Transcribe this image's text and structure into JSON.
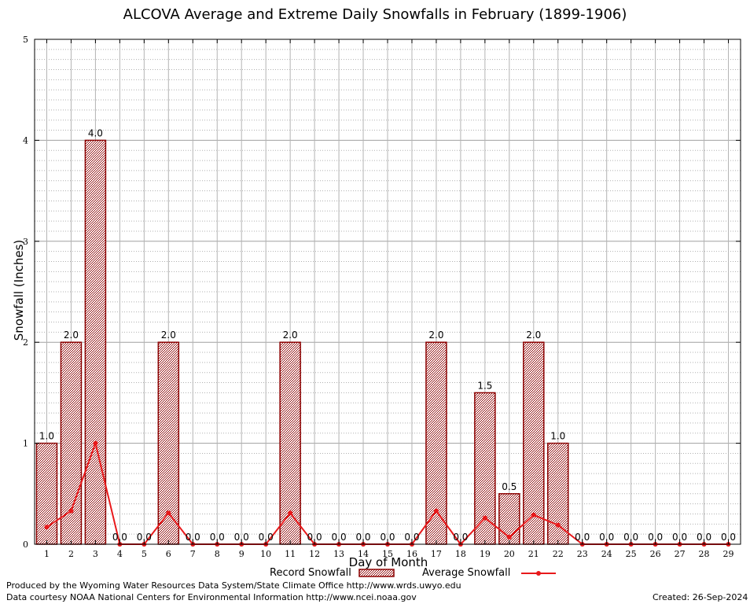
{
  "chart_data": {
    "type": "bar",
    "title": "ALCOVA Average and Extreme Daily Snowfalls in February (1899-1906)",
    "xlabel": "Day of Month",
    "ylabel": "Snowfall (Inches)",
    "ylim": [
      0,
      5
    ],
    "yticks": [
      "0",
      "1",
      "2",
      "3",
      "4",
      "5"
    ],
    "grid": true,
    "categories": [
      "1",
      "2",
      "3",
      "4",
      "5",
      "6",
      "7",
      "8",
      "9",
      "10",
      "11",
      "12",
      "13",
      "14",
      "15",
      "16",
      "17",
      "18",
      "19",
      "20",
      "21",
      "22",
      "23",
      "24",
      "25",
      "26",
      "27",
      "28",
      "29"
    ],
    "series": [
      {
        "name": "Record Snowfall",
        "type": "bar",
        "color": "#8b0000",
        "values": [
          1.0,
          2.0,
          4.0,
          0.0,
          0.0,
          2.0,
          0.0,
          0.0,
          0.0,
          0.0,
          2.0,
          0.0,
          0.0,
          0.0,
          0.0,
          0.0,
          2.0,
          0.0,
          1.5,
          0.5,
          2.0,
          1.0,
          0.0,
          0.0,
          0.0,
          0.0,
          0.0,
          0.0,
          0.0
        ],
        "labels": [
          "1.0",
          "2.0",
          "4.0",
          "0.0",
          "0.0",
          "2.0",
          "0.0",
          "0.0",
          "0.0",
          "0.0",
          "2.0",
          "0.0",
          "0.0",
          "0.0",
          "0.0",
          "0.0",
          "2.0",
          "0.0",
          "1.5",
          "0.5",
          "2.0",
          "1.0",
          "0.0",
          "0.0",
          "0.0",
          "0.0",
          "0.0",
          "0.0",
          "0.0"
        ]
      },
      {
        "name": "Average Snowfall",
        "type": "line",
        "color": "#e8191b",
        "values": [
          0.17,
          0.33,
          1.0,
          0.0,
          0.0,
          0.31,
          0.0,
          0.0,
          0.0,
          0.0,
          0.31,
          0.0,
          0.0,
          0.0,
          0.0,
          0.0,
          0.33,
          0.0,
          0.26,
          0.07,
          0.29,
          0.19,
          0.0,
          0.0,
          0.0,
          0.0,
          0.0,
          0.0,
          0.0
        ]
      }
    ],
    "legend_position": "bottom"
  },
  "footer": {
    "produced_by": "Produced by the Wyoming Water Resources Data System/State Climate Office http://www.wrds.uwyo.edu",
    "courtesy": "Data courtesy NOAA National Centers for Environmental Information http://www.ncei.noaa.gov",
    "created": "Created: 26-Sep-2024"
  }
}
